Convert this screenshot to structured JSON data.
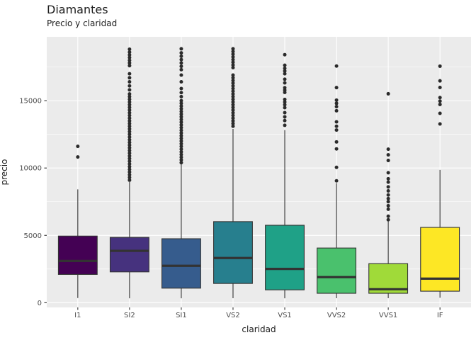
{
  "title": "Diamantes",
  "subtitle": "Precio y claridad",
  "x_axis": {
    "label": "claridad"
  },
  "y_axis": {
    "label": "precio"
  },
  "colors": {
    "figure_bg": "#FFFFFF",
    "panel_bg": "#EBEBEB",
    "grid": "#FFFFFF",
    "box_border": "#333333",
    "outlier_dot": "#2B2B2B",
    "tick_mark": "#333333",
    "tick_label": "#4D4D4D",
    "text": "#1A1A1A"
  },
  "chart_data": {
    "type": "boxplot",
    "title": "Diamantes",
    "subtitle": "Precio y claridad",
    "xlabel": "claridad",
    "ylabel": "precio",
    "ylim": [
      -350,
      19740
    ],
    "y_ticks": [
      0,
      5000,
      10000,
      15000
    ],
    "y_minor_ticks": [
      2500,
      7500,
      12500,
      17500
    ],
    "grid": true,
    "legend": "none",
    "categories": [
      "I1",
      "SI2",
      "SI1",
      "VS2",
      "VS1",
      "VVS2",
      "VVS1",
      "IF"
    ],
    "palette": [
      "#440154",
      "#46327E",
      "#365C8D",
      "#277F8E",
      "#1FA187",
      "#4AC16D",
      "#A0DA39",
      "#FDE725"
    ],
    "boxes": [
      {
        "label": "I1",
        "color": "#440154",
        "whisker_low": 345,
        "q1": 2100,
        "median": 3100,
        "q3": 4950,
        "whisker_high": 8410,
        "outliers": [
          10820,
          11610
        ]
      },
      {
        "label": "SI2",
        "color": "#46327E",
        "whisker_low": 326,
        "q1": 2290,
        "median": 3850,
        "q3": 4850,
        "whisker_high": 8960,
        "outliers": [
          9100,
          9300,
          9500,
          9700,
          9900,
          10100,
          10300,
          10500,
          10700,
          10900,
          11100,
          11300,
          11500,
          11700,
          11900,
          12100,
          12300,
          12500,
          12700,
          12900,
          13100,
          13300,
          13500,
          13700,
          13900,
          14100,
          14300,
          14500,
          14700,
          14900,
          15100,
          15300,
          15500,
          15800,
          16100,
          16400,
          16700,
          17000,
          17600,
          17800,
          18000,
          18200,
          18400,
          18600,
          18820
        ]
      },
      {
        "label": "SI1",
        "color": "#365C8D",
        "whisker_low": 326,
        "q1": 1080,
        "median": 2740,
        "q3": 4750,
        "whisker_high": 10280,
        "outliers": [
          10400,
          10600,
          10800,
          11000,
          11200,
          11400,
          11600,
          11800,
          12000,
          12200,
          12400,
          12600,
          12800,
          13000,
          13200,
          13400,
          13600,
          13800,
          14000,
          14200,
          14400,
          14600,
          14800,
          15000,
          15300,
          15600,
          15900,
          16400,
          16900,
          17300,
          17550,
          17800,
          18050,
          18300,
          18550,
          18850
        ]
      },
      {
        "label": "VS2",
        "color": "#277F8E",
        "whisker_low": 334,
        "q1": 1430,
        "median": 3320,
        "q3": 6020,
        "whisker_high": 12900,
        "outliers": [
          13100,
          13300,
          13500,
          13700,
          13900,
          14100,
          14300,
          14500,
          14700,
          14900,
          15100,
          15300,
          15500,
          15700,
          15900,
          16100,
          16300,
          16500,
          16700,
          16900,
          17450,
          17650,
          17850,
          18050,
          18250,
          18450,
          18650,
          18850
        ]
      },
      {
        "label": "VS1",
        "color": "#1FA187",
        "whisker_low": 327,
        "q1": 955,
        "median": 2510,
        "q3": 5750,
        "whisker_high": 12815,
        "outliers": [
          13170,
          13520,
          13800,
          14110,
          14480,
          14700,
          14900,
          15090,
          15610,
          15780,
          15960,
          16320,
          16590,
          17000,
          17200,
          17400,
          17630,
          18415
        ]
      },
      {
        "label": "VVS2",
        "color": "#4AC16D",
        "whisker_low": 336,
        "q1": 700,
        "median": 1900,
        "q3": 4060,
        "whisker_high": 8880,
        "outliers": [
          9050,
          10050,
          11420,
          11940,
          12820,
          13100,
          13430,
          14250,
          14560,
          14800,
          15040,
          15970,
          17570
        ]
      },
      {
        "label": "VVS1",
        "color": "#A0DA39",
        "whisker_low": 336,
        "q1": 700,
        "median": 1000,
        "q3": 2900,
        "whisker_high": 6035,
        "outliers": [
          6160,
          6420,
          6940,
          7200,
          7500,
          7730,
          8000,
          8300,
          8600,
          8950,
          9200,
          9650,
          10560,
          10980,
          11400,
          15510
        ]
      },
      {
        "label": "IF",
        "color": "#FDE725",
        "whisker_low": 369,
        "q1": 855,
        "median": 1785,
        "q3": 5590,
        "whisker_high": 9860,
        "outliers": [
          13270,
          14060,
          14720,
          14970,
          15230,
          15980,
          16470,
          17560
        ]
      }
    ]
  }
}
